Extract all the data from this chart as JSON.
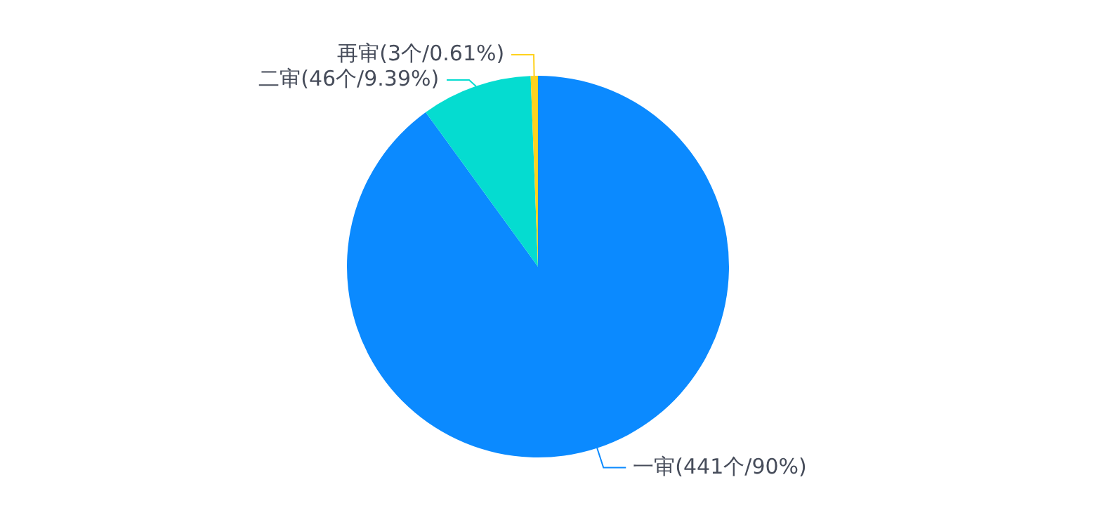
{
  "chart_data": {
    "type": "pie",
    "categories": [
      "一审(441个/90%)",
      "二审(46个/9.39%)",
      "再审(3个/0.61%)"
    ],
    "values": [
      90,
      9.39,
      0.61
    ],
    "colors": [
      "#0b8aff",
      "#05dcd0",
      "#ffd21e"
    ],
    "legend": false
  }
}
